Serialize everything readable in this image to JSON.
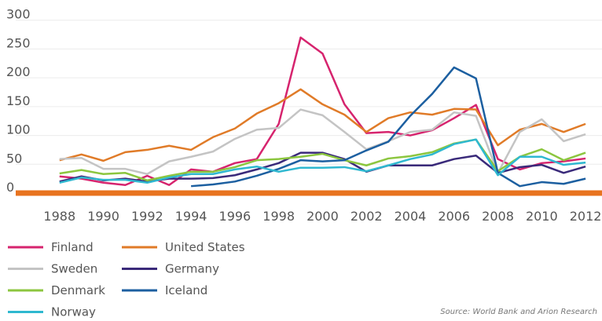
{
  "chart_data": {
    "type": "line",
    "x": [
      1988,
      1989,
      1990,
      1991,
      1992,
      1993,
      1994,
      1995,
      1996,
      1997,
      1998,
      1999,
      2000,
      2001,
      2002,
      2003,
      2004,
      2005,
      2006,
      2007,
      2008,
      2009,
      2010,
      2011,
      2012
    ],
    "xlim": [
      1986,
      2012.75
    ],
    "xticks": [
      1988,
      1990,
      1992,
      1994,
      1996,
      1998,
      2000,
      2002,
      2004,
      2006,
      2008,
      2010,
      2012
    ],
    "ylim": [
      0,
      335
    ],
    "yticks": [
      0,
      50,
      100,
      150,
      200,
      250,
      300
    ],
    "grid": true,
    "series": [
      {
        "name": "Finland",
        "color": "#d6246e",
        "values": [
          29,
          25,
          18,
          14,
          30,
          14,
          41,
          37,
          52,
          59,
          120,
          270,
          242,
          154,
          104,
          106,
          100,
          109,
          130,
          153,
          59,
          41,
          52,
          55,
          60
        ]
      },
      {
        "name": "United States",
        "color": "#e07b28",
        "values": [
          57,
          67,
          56,
          71,
          75,
          82,
          75,
          97,
          112,
          138,
          156,
          180,
          154,
          136,
          106,
          130,
          140,
          136,
          146,
          145,
          83,
          110,
          120,
          106,
          120
        ]
      },
      {
        "name": "Sweden",
        "color": "#c4c4c4",
        "values": [
          59,
          61,
          42,
          42,
          33,
          55,
          63,
          72,
          94,
          110,
          113,
          145,
          135,
          106,
          76,
          90,
          106,
          110,
          140,
          134,
          35,
          106,
          128,
          90,
          102
        ]
      },
      {
        "name": "Germany",
        "color": "#3a2a7a",
        "values": [
          20,
          29,
          22,
          25,
          20,
          25,
          25,
          26,
          31,
          41,
          52,
          70,
          70,
          59,
          37,
          48,
          48,
          48,
          59,
          65,
          35,
          45,
          49,
          35,
          46
        ]
      },
      {
        "name": "Denmark",
        "color": "#8cc63f",
        "values": [
          34,
          40,
          33,
          35,
          22,
          30,
          37,
          37,
          45,
          57,
          59,
          63,
          68,
          57,
          48,
          60,
          64,
          71,
          86,
          93,
          38,
          63,
          76,
          57,
          70
        ]
      },
      {
        "name": "Iceland",
        "color": "#1c5fa0",
        "values": [
          null,
          null,
          null,
          null,
          null,
          null,
          12,
          15,
          20,
          30,
          42,
          57,
          55,
          57,
          74,
          89,
          134,
          172,
          218,
          199,
          35,
          12,
          19,
          16,
          25
        ]
      },
      {
        "name": "Norway",
        "color": "#2fb8d0",
        "values": [
          18,
          27,
          23,
          23,
          18,
          27,
          33,
          33,
          41,
          46,
          37,
          44,
          44,
          45,
          38,
          48,
          59,
          67,
          85,
          93,
          31,
          63,
          63,
          49,
          53
        ]
      }
    ],
    "source": "Source: World Bank and Arion Research"
  }
}
